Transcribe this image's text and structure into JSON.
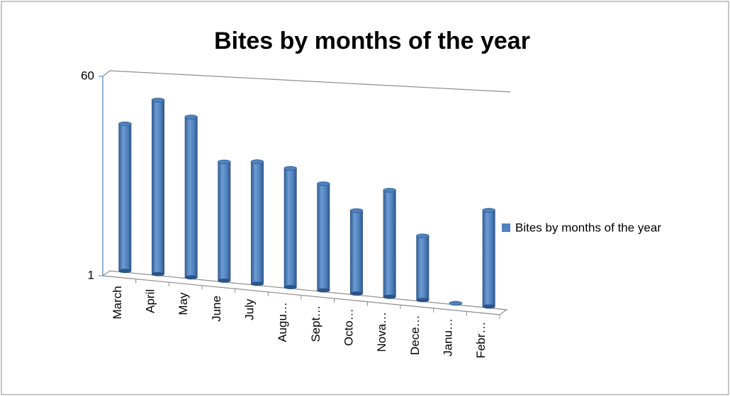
{
  "chart_data": {
    "type": "bar",
    "title": "Bites by months of the year",
    "categories": [
      "March",
      "April",
      "May",
      "June",
      "July",
      "Augu…",
      "Sept…",
      "Octo…",
      "Nova…",
      "Dece…",
      "Janu…",
      "Febr…"
    ],
    "series": [
      {
        "name": "Bites by months of the year",
        "color": "#4f81bd",
        "values": [
          24,
          43,
          32,
          13,
          14,
          13,
          10,
          6,
          10,
          4,
          1,
          8
        ]
      }
    ],
    "ylim": [
      1,
      60
    ],
    "yticks": [
      1,
      60
    ],
    "log_scale": true,
    "legend": "right"
  }
}
